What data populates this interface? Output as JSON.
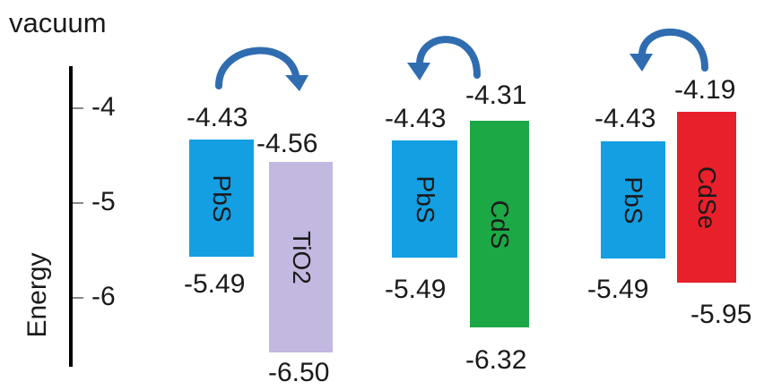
{
  "axis": {
    "top_label": "vacuum",
    "title": "Energy",
    "ticks": [
      "-4",
      "-5",
      "-6"
    ]
  },
  "colors": {
    "pbs": "#139fe2",
    "tio2": "#c3b8e0",
    "cds": "#1ba845",
    "cdse": "#e8202b",
    "arrow": "#2f6db0"
  },
  "groups": [
    {
      "left": {
        "name": "PbS",
        "top": "-4.43",
        "bottom": "-5.49"
      },
      "right": {
        "name": "TiO2",
        "top": "-4.56",
        "bottom": "-6.50"
      },
      "arrow": "PbS to TiO2"
    },
    {
      "left": {
        "name": "PbS",
        "top": "-4.43",
        "bottom": "-5.49"
      },
      "right": {
        "name": "CdS",
        "top": "-4.31",
        "bottom": "-6.32"
      },
      "arrow": "CdS to PbS"
    },
    {
      "left": {
        "name": "PbS",
        "top": "-4.43",
        "bottom": "-5.49"
      },
      "right": {
        "name": "CdSe",
        "top": "-4.19",
        "bottom": "-5.95"
      },
      "arrow": "CdSe to PbS"
    }
  ]
}
